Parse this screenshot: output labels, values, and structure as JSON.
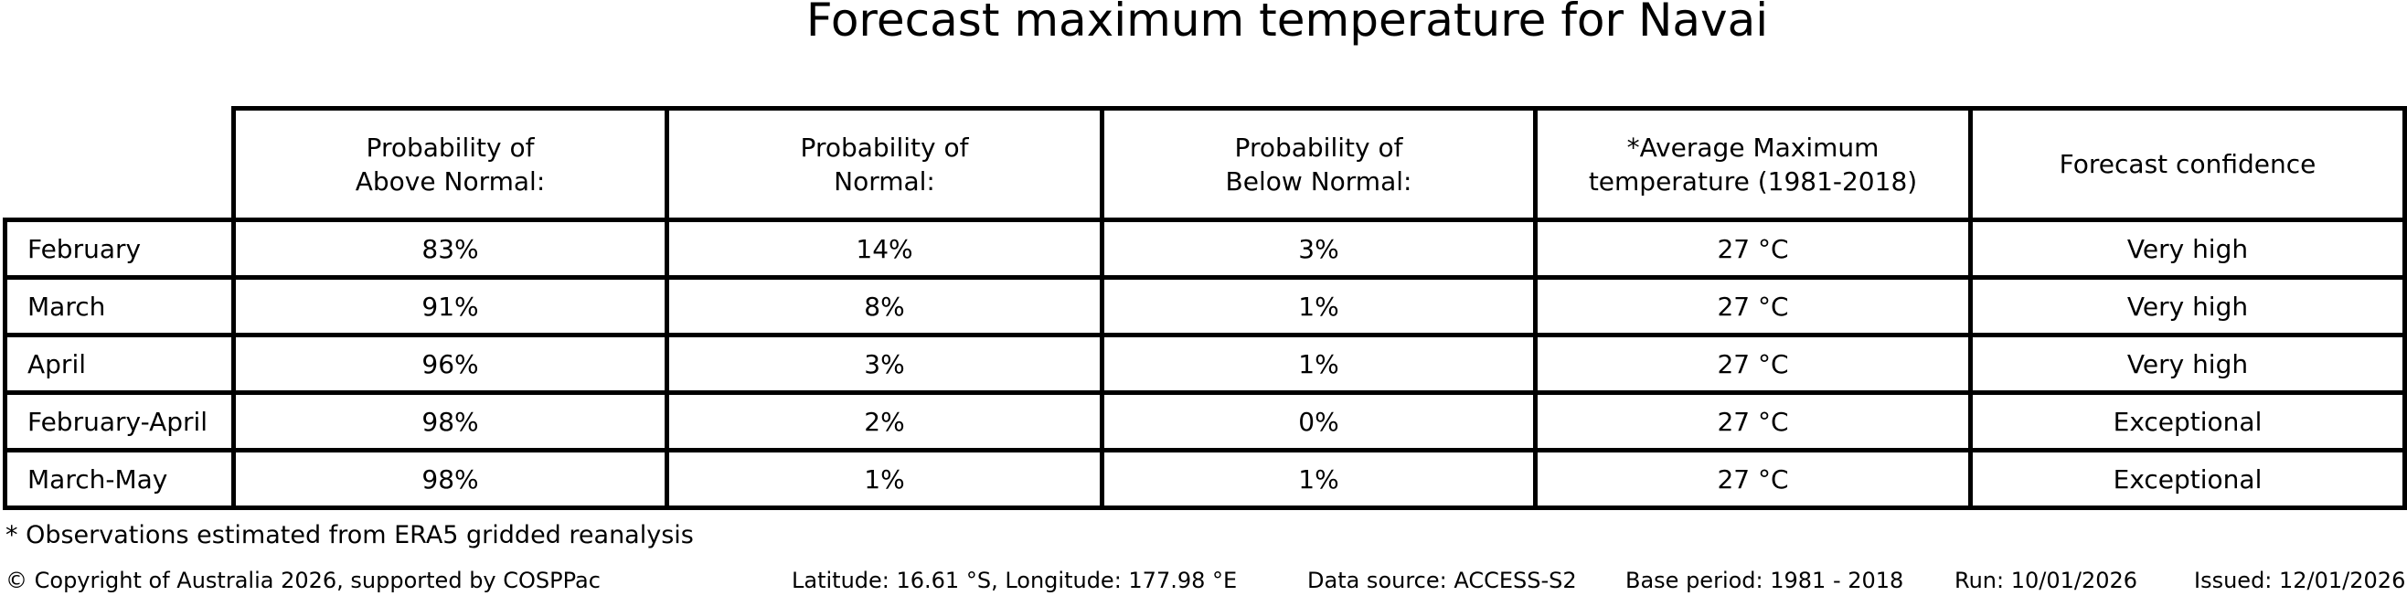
{
  "chart_data": {
    "type": "table",
    "title": "Forecast maximum temperature for Navai",
    "columns": [
      "",
      "Probability of\nAbove Normal:",
      "Probability of\nNormal:",
      "Probability of\nBelow Normal:",
      "*Average Maximum\ntemperature (1981-2018)",
      "Forecast confidence"
    ],
    "rows": [
      [
        "February",
        "83%",
        "14%",
        "3%",
        "27 °C",
        "Very high"
      ],
      [
        "March",
        "91%",
        "8%",
        "1%",
        "27 °C",
        "Very high"
      ],
      [
        "April",
        "96%",
        "3%",
        "1%",
        "27 °C",
        "Very high"
      ],
      [
        "February-April",
        "98%",
        "2%",
        "0%",
        "27 °C",
        "Exceptional"
      ],
      [
        "March-May",
        "98%",
        "1%",
        "1%",
        "27 °C",
        "Exceptional"
      ]
    ],
    "layout": {
      "grid": true,
      "header_position": "top",
      "row_label_column": true
    }
  },
  "footnote": "* Observations estimated from ERA5 gridded reanalysis",
  "footer": {
    "copyright": "© Copyright of Australia 2026, supported by COSPPac",
    "location": "Latitude: 16.61 °S, Longitude: 177.98 °E",
    "data_source": "Data source: ACCESS-S2",
    "base_period": "Base period: 1981 - 2018",
    "run": "Run: 10/01/2026",
    "issued": "Issued: 12/01/2026"
  },
  "colors": {
    "text": "#000000",
    "background": "#ffffff",
    "table_border": "#000000"
  }
}
